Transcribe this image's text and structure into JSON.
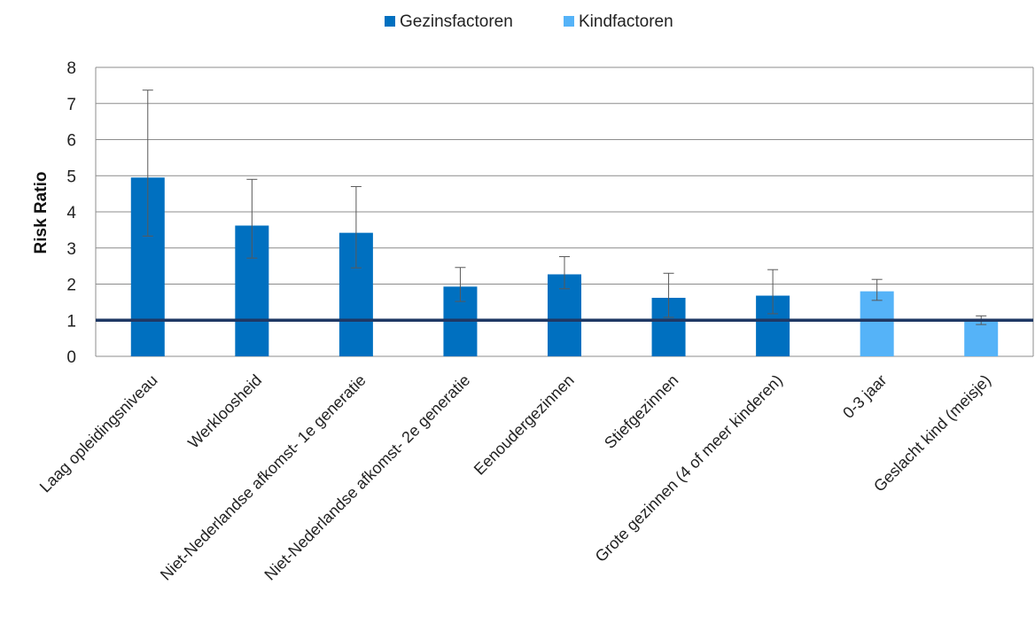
{
  "chart_data": {
    "type": "bar",
    "ylabel": "Risk Ratio",
    "xlabel": "",
    "ylim": [
      0,
      8
    ],
    "yticks": [
      0,
      1,
      2,
      3,
      4,
      5,
      6,
      7,
      8
    ],
    "grid": true,
    "legend_position": "top-center",
    "reference_line": 1,
    "categories": [
      "Laag opleidingsniveau",
      "Werkloosheid",
      "Niet-Nederlandse afkomst- 1e generatie",
      "Niet-Nederlandse afkomst- 2e generatie",
      "Eenoudergezinnen",
      "Stiefgezinnen",
      "Grote gezinnen (4 of meer kinderen)",
      "0-3 jaar",
      "Geslacht kind (meisje)"
    ],
    "series": [
      {
        "name": "Gezinsfactoren",
        "color": "#0070c0",
        "values": [
          4.95,
          3.62,
          3.42,
          1.93,
          2.27,
          1.62,
          1.68,
          null,
          null
        ],
        "error_low": [
          3.33,
          2.72,
          2.45,
          1.52,
          1.87,
          1.08,
          1.18,
          null,
          null
        ],
        "error_high": [
          7.37,
          4.9,
          4.7,
          2.46,
          2.76,
          2.3,
          2.4,
          null,
          null
        ]
      },
      {
        "name": "Kindfactoren",
        "color": "#55b3f8",
        "values": [
          null,
          null,
          null,
          null,
          null,
          null,
          null,
          1.8,
          1.0
        ],
        "error_low": [
          null,
          null,
          null,
          null,
          null,
          null,
          null,
          1.55,
          0.88
        ],
        "error_high": [
          null,
          null,
          null,
          null,
          null,
          null,
          null,
          2.13,
          1.12
        ]
      }
    ],
    "reference_line_color": "#1f3864"
  }
}
